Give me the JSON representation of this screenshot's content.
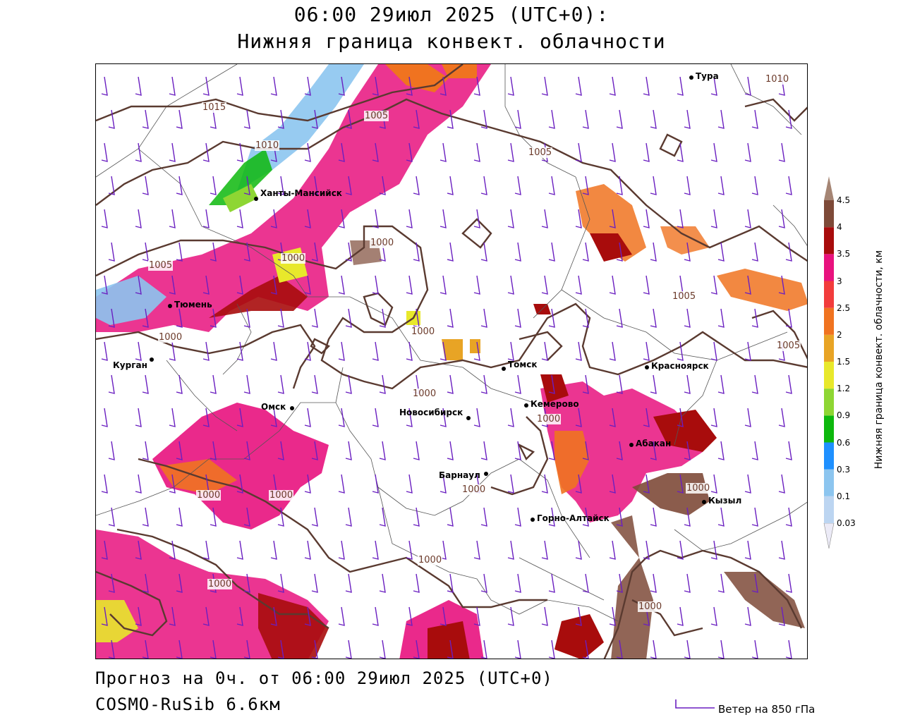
{
  "header": {
    "time_line": "06:00 29июл 2025 (UTC+0):",
    "parameter": "Нижняя граница конвект. облачности"
  },
  "footer": {
    "forecast": "Прогноз на 0ч. от 06:00 29июл 2025 (UTC+0)",
    "model": "COSMO-RuSib 6.6км",
    "wind_key_label": "Ветер на 850 гПа"
  },
  "legend": {
    "title": "Нижняя граница конвект. облачности, км",
    "levels": [
      "0.03",
      "0.1",
      "0.3",
      "0.6",
      "0.9",
      "1.2",
      "1.5",
      "2",
      "2.5",
      "3",
      "3.5",
      "4",
      "4.5"
    ],
    "colors": [
      "#ecebf7",
      "#bcd5f1",
      "#8cc5ef",
      "#1e90ff",
      "#0db80d",
      "#8ed633",
      "#e8e82b",
      "#e8a425",
      "#f07320",
      "#f23c3c",
      "#e8127e",
      "#a80c0c",
      "#7e4a38",
      "#a58574"
    ]
  },
  "cities": [
    {
      "name": "Тура"
    },
    {
      "name": "Ханты-Мансийск"
    },
    {
      "name": "Тюмень"
    },
    {
      "name": "Курган"
    },
    {
      "name": "Омск"
    },
    {
      "name": "Новосибирск"
    },
    {
      "name": "Томск"
    },
    {
      "name": "Кемерово"
    },
    {
      "name": "Красноярск"
    },
    {
      "name": "Барнаул"
    },
    {
      "name": "Абакан"
    },
    {
      "name": "Горно-Алтайск"
    },
    {
      "name": "Кызыл"
    }
  ],
  "isobar_labels": [
    "1015",
    "1005",
    "1010",
    "1010",
    "1005",
    "1000",
    "1005",
    "1000",
    "1000",
    "1005",
    "1000",
    "1000",
    "1005",
    "1000",
    "1000",
    "1000",
    "1000",
    "1000",
    "1000",
    "1000",
    "1000"
  ],
  "colors": {
    "isobar": "#5a3a30",
    "wind_barb": "#6a1fc0",
    "border": "#555555"
  }
}
